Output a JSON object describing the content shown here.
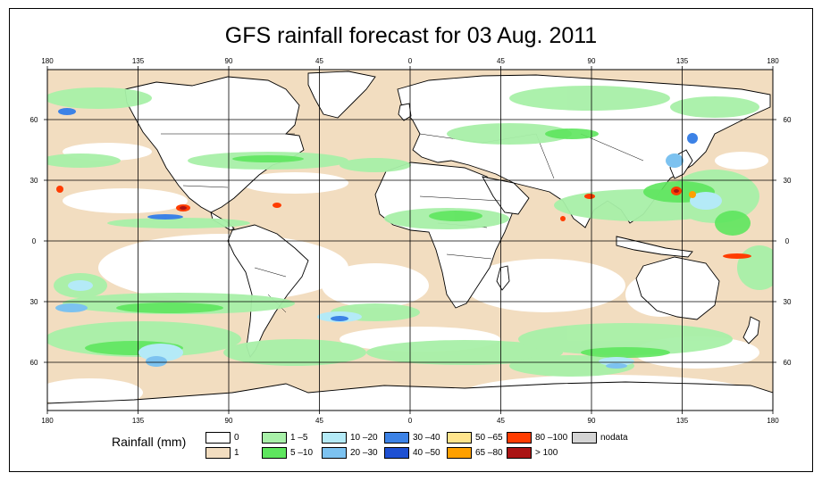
{
  "title": "GFS rainfall forecast for 03 Aug. 2011",
  "axes": {
    "lon_ticks": [
      "180",
      "135",
      "90",
      "45",
      "0",
      "45",
      "90",
      "135",
      "180"
    ],
    "lat_ticks_left": [
      "60",
      "30",
      "0",
      "30",
      "60"
    ],
    "lat_ticks_right": [
      "60",
      "30",
      "0",
      "30",
      "60"
    ]
  },
  "legend": {
    "title": "Rainfall (mm)",
    "items": [
      {
        "label": "0",
        "color": "#ffffff"
      },
      {
        "label": "1",
        "color": "#f2ddc0"
      },
      {
        "label": "1 –5",
        "color": "#a8f0a8"
      },
      {
        "label": "5 –10",
        "color": "#5ee65e"
      },
      {
        "label": "10 –20",
        "color": "#b4eaf7"
      },
      {
        "label": "20 –30",
        "color": "#7cc2f0"
      },
      {
        "label": "30 –40",
        "color": "#3c82e6"
      },
      {
        "label": "40 –50",
        "color": "#1e50d2"
      },
      {
        "label": "50 –65",
        "color": "#ffe48c"
      },
      {
        "label": "65 –80",
        "color": "#ffa000"
      },
      {
        "label": "80 –100",
        "color": "#ff3c00"
      },
      {
        "label": "> 100",
        "color": "#aa1414"
      },
      {
        "label": "nodata",
        "color": "#d4d4d4"
      }
    ]
  },
  "colors": {
    "ocean_background": "#f2ddc0",
    "land": "#ffffff",
    "grid": "#000000"
  }
}
